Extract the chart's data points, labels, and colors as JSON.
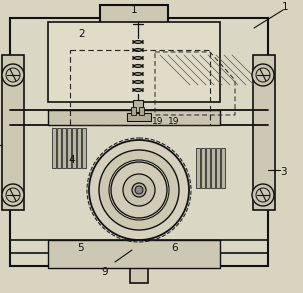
{
  "bg_color": "#d8d4c0",
  "paper_color": "#e8e4d4",
  "line_color": "#111111",
  "dashed_color": "#222222",
  "fig_width": 3.03,
  "fig_height": 2.93,
  "dpi": 100,
  "labels": {
    "1_top": "1",
    "2": "2",
    "1_right": "1",
    "3": "3",
    "4": "4",
    "5": "5",
    "6": "6",
    "9": "9",
    "19a": "19",
    "19b": "19"
  }
}
